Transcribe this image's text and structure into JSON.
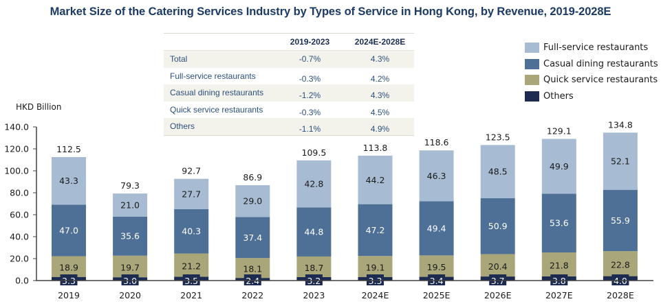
{
  "title": "Market Size of the Catering Services Industry by Types of Service in Hong Kong, by Revenue, 2019-2028E",
  "cagr_table": {
    "headers": [
      "",
      "2019-2023",
      "2024E-2028E"
    ],
    "rows": [
      {
        "label": "Total",
        "period1": "-0.7%",
        "period2": "4.3%"
      },
      {
        "label": "Full-service restaurants",
        "period1": "-0.3%",
        "period2": "4.2%"
      },
      {
        "label": "Casual dining restaurants",
        "period1": "-1.2%",
        "period2": "4.3%"
      },
      {
        "label": "Quick service restaurants",
        "period1": "-0.3%",
        "period2": "4.5%"
      },
      {
        "label": "Others",
        "period1": "-1.1%",
        "period2": "4.9%"
      }
    ]
  },
  "chart_data": {
    "type": "bar",
    "stacked": true,
    "title": "Market Size of the Catering Services Industry by Types of Service in Hong Kong, by Revenue, 2019-2028E",
    "xlabel": "",
    "ylabel": "HKD Billion",
    "ylim": [
      0,
      140
    ],
    "yticks": [
      0,
      20,
      40,
      60,
      80,
      100,
      120,
      140
    ],
    "ytick_labels": [
      "0.0",
      "20.0",
      "40.0",
      "60.0",
      "80.0",
      "100.0",
      "120.0",
      "140.0"
    ],
    "grid": false,
    "legend_position": "top-right",
    "categories": [
      "2019",
      "2020",
      "2021",
      "2022",
      "2023",
      "2024E",
      "2025E",
      "2026E",
      "2027E",
      "2028E"
    ],
    "totals": [
      112.5,
      79.3,
      92.7,
      86.9,
      109.5,
      113.8,
      118.6,
      123.5,
      129.1,
      134.8
    ],
    "series": [
      {
        "name": "Others",
        "color": "#1c2b4f",
        "label_color": "#ffffff",
        "values": [
          3.3,
          3.0,
          3.5,
          2.4,
          3.2,
          3.3,
          3.4,
          3.7,
          3.8,
          4.0
        ]
      },
      {
        "name": "Quick service restaurants",
        "color": "#a9a77a",
        "label_color": "#1a1a1a",
        "values": [
          18.9,
          19.7,
          21.2,
          18.1,
          18.7,
          19.1,
          19.5,
          20.4,
          21.8,
          22.8
        ]
      },
      {
        "name": "Casual dining restaurants",
        "color": "#4e7096",
        "label_color": "#ffffff",
        "values": [
          47.0,
          35.6,
          40.3,
          37.4,
          44.8,
          47.2,
          49.4,
          50.9,
          53.6,
          55.9
        ]
      },
      {
        "name": "Full-service restaurants",
        "color": "#a7bcd3",
        "label_color": "#1a1a1a",
        "values": [
          43.3,
          21.0,
          27.7,
          29.0,
          42.8,
          44.2,
          46.3,
          48.5,
          49.9,
          52.1
        ]
      }
    ],
    "legend": [
      {
        "name": "Full-service restaurants",
        "color": "#a7bcd3"
      },
      {
        "name": "Casual dining restaurants",
        "color": "#4e7096"
      },
      {
        "name": "Quick service restaurants",
        "color": "#a9a77a"
      },
      {
        "name": "Others",
        "color": "#1c2b4f"
      }
    ]
  }
}
